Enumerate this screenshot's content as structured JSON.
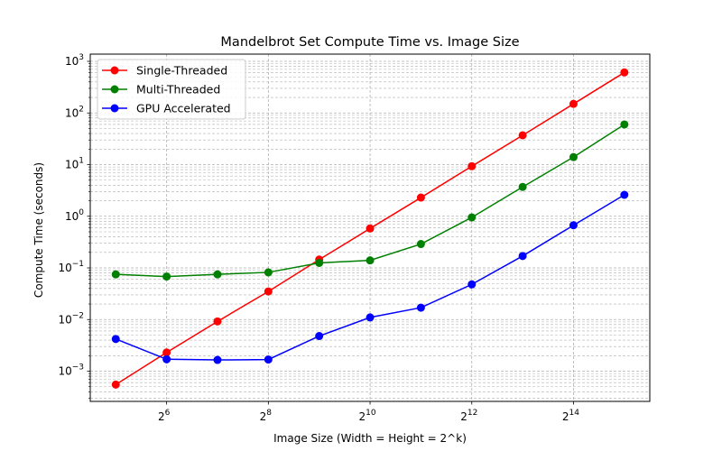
{
  "chart_data": {
    "type": "line",
    "title": "Mandelbrot Set Compute Time vs. Image Size",
    "xlabel": "Image Size (Width = Height = 2^k)",
    "ylabel": "Compute Time (seconds)",
    "x_scale": "log2",
    "y_scale": "log10",
    "x": [
      32,
      64,
      128,
      256,
      512,
      1024,
      2048,
      4096,
      8192,
      16384,
      32768
    ],
    "x_ticks": [
      {
        "value": 64,
        "base": "2",
        "exp": "6"
      },
      {
        "value": 256,
        "base": "2",
        "exp": "8"
      },
      {
        "value": 1024,
        "base": "2",
        "exp": "10"
      },
      {
        "value": 4096,
        "base": "2",
        "exp": "12"
      },
      {
        "value": 16384,
        "base": "2",
        "exp": "14"
      }
    ],
    "y_ticks": [
      {
        "value": 0.001,
        "base": "10",
        "exp": "−3"
      },
      {
        "value": 0.01,
        "base": "10",
        "exp": "−2"
      },
      {
        "value": 0.1,
        "base": "10",
        "exp": "−1"
      },
      {
        "value": 1,
        "base": "10",
        "exp": "0"
      },
      {
        "value": 10,
        "base": "10",
        "exp": "1"
      },
      {
        "value": 100,
        "base": "10",
        "exp": "2"
      },
      {
        "value": 1000,
        "base": "10",
        "exp": "3"
      }
    ],
    "xlim": [
      22.6,
      46341
    ],
    "ylim": [
      0.00026,
      1380
    ],
    "grid": true,
    "legend_position": "upper-left",
    "series": [
      {
        "name": "Single-Threaded",
        "color": "#ff0000",
        "values": [
          0.00055,
          0.0023,
          0.0092,
          0.035,
          0.145,
          0.58,
          2.3,
          9.3,
          37,
          150,
          610
        ]
      },
      {
        "name": "Multi-Threaded",
        "color": "#008000",
        "values": [
          0.075,
          0.068,
          0.075,
          0.082,
          0.125,
          0.14,
          0.29,
          0.95,
          3.7,
          14,
          60
        ]
      },
      {
        "name": "GPU Accelerated",
        "color": "#0000ff",
        "values": [
          0.0042,
          0.0017,
          0.00165,
          0.00168,
          0.0048,
          0.011,
          0.017,
          0.048,
          0.17,
          0.67,
          2.6
        ]
      }
    ]
  }
}
